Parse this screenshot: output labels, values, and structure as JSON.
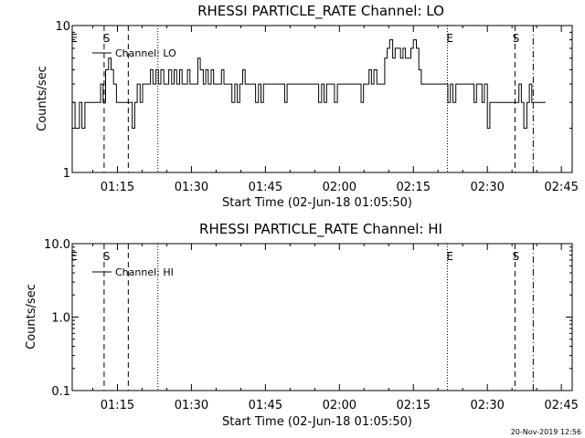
{
  "chart_data": [
    {
      "type": "line",
      "title": "RHESSI PARTICLE_RATE Channel: LO",
      "xlabel": "Start Time (02-Jun-18 01:05:50)",
      "ylabel": "Counts/sec",
      "y_scale": "log",
      "ylim": [
        1,
        10
      ],
      "y_ticks": [
        "1",
        "10"
      ],
      "x_ticks": [
        "01:15",
        "01:30",
        "01:45",
        "02:00",
        "02:15",
        "02:30",
        "02:45"
      ],
      "x_tick_minutes": [
        75,
        90,
        105,
        120,
        135,
        150,
        165
      ],
      "xlim_minutes": [
        65.83,
        167.2
      ],
      "legend": "Channel: LO",
      "legend_position": "top-left",
      "series": [
        {
          "x": [
            65.8,
            66.4,
            67.3,
            67.8,
            68.4,
            68.9,
            69.4,
            70.0,
            70.5,
            71.0,
            71.6,
            72.1,
            72.6,
            73.2,
            73.7,
            74.2,
            74.8,
            75.3,
            75.8,
            76.4,
            76.9,
            77.4,
            78.0,
            78.5,
            79.0,
            79.6,
            80.1,
            80.6,
            81.2,
            81.7,
            82.2,
            82.8,
            83.3,
            83.8,
            84.4,
            84.9,
            85.4,
            86.0,
            86.5,
            87.0,
            87.6,
            88.1,
            88.6,
            89.2,
            89.7,
            90.2,
            90.8,
            91.3,
            91.8,
            92.4,
            92.9,
            93.4,
            94.0,
            94.5,
            95.0,
            95.6,
            96.1,
            96.6,
            97.2,
            97.7,
            98.2,
            98.8,
            99.3,
            99.8,
            100.4,
            100.9,
            101.4,
            102.0,
            102.5,
            103.0,
            103.6,
            104.1,
            104.6,
            105.2,
            105.7,
            106.2,
            106.8,
            107.3,
            107.8,
            108.4,
            108.9,
            109.4,
            110.0,
            110.5,
            111.0,
            111.6,
            112.1,
            112.6,
            113.2,
            113.7,
            114.2,
            114.8,
            115.3,
            115.8,
            116.4,
            116.9,
            117.4,
            118.0,
            118.5,
            119.0,
            119.6,
            120.1,
            120.6,
            121.2,
            121.7,
            122.2,
            122.8,
            123.3,
            123.8,
            124.4,
            124.9,
            125.4,
            126.0,
            126.5,
            127.0,
            127.6,
            128.1,
            128.6,
            129.2,
            129.7,
            130.2,
            130.8,
            131.3,
            131.8,
            132.4,
            132.9,
            133.4,
            134.0,
            134.5,
            135.0,
            135.6,
            136.1,
            136.6,
            137.2,
            137.7,
            138.2,
            138.8,
            139.3,
            139.8,
            140.4,
            140.9,
            141.4,
            142.0,
            142.5,
            143.0,
            143.6,
            144.1,
            144.6,
            145.2,
            145.7,
            146.2,
            146.8,
            147.3,
            147.8,
            148.4,
            148.9,
            149.4,
            150.0,
            150.5,
            151.0,
            151.6,
            152.1,
            152.6,
            153.2,
            153.7,
            154.2,
            154.8,
            155.3,
            155.8,
            156.4,
            156.9,
            157.4,
            158.0,
            158.5,
            159.0,
            159.6,
            160.1,
            160.6,
            161.2
          ],
          "y": [
            3,
            2,
            3,
            2,
            3,
            3,
            3,
            3,
            3,
            3,
            4,
            3,
            5,
            6,
            5,
            4,
            3,
            3,
            3,
            3,
            3,
            3,
            2,
            3,
            4,
            3,
            4,
            4,
            4,
            5,
            4,
            5,
            4,
            5,
            4,
            4,
            5,
            4,
            5,
            4,
            5,
            4,
            4,
            5,
            4,
            4,
            4,
            6,
            5,
            4,
            5,
            4,
            5,
            4,
            4,
            4,
            5,
            4,
            4,
            4,
            3,
            4,
            3,
            4,
            5,
            4,
            4,
            4,
            4,
            3,
            4,
            3,
            4,
            4,
            4,
            4,
            4,
            4,
            4,
            4,
            3,
            4,
            4,
            4,
            4,
            4,
            4,
            4,
            4,
            4,
            4,
            4,
            4,
            3,
            4,
            3,
            4,
            4,
            4,
            3,
            4,
            4,
            4,
            4,
            4,
            4,
            4,
            4,
            4,
            3,
            4,
            4,
            5,
            4,
            5,
            4,
            4,
            4,
            6,
            7,
            8,
            6,
            7,
            7,
            6,
            7,
            6,
            6,
            7,
            8,
            7,
            5,
            4,
            4,
            4,
            4,
            4,
            4,
            4,
            4,
            4,
            4,
            3,
            4,
            3,
            4,
            4,
            4,
            4,
            4,
            4,
            4,
            3,
            4,
            4,
            3,
            4,
            2,
            3,
            3,
            3,
            3,
            3,
            3,
            3,
            3,
            3,
            3,
            3,
            4,
            3,
            2,
            3,
            4,
            3,
            3,
            3,
            3,
            3
          ]
        }
      ],
      "annotations": [
        {
          "label": "E",
          "minute": 66.2
        },
        {
          "label": "S",
          "minute": 72.8
        },
        {
          "label": "E",
          "minute": 142.4
        },
        {
          "label": "S",
          "minute": 155.8
        }
      ],
      "markers": [
        {
          "minute": 72.3,
          "style": "dashed"
        },
        {
          "minute": 77.2,
          "style": "dashed"
        },
        {
          "minute": 83.2,
          "style": "dotted"
        },
        {
          "minute": 141.9,
          "style": "dotted"
        },
        {
          "minute": 155.6,
          "style": "dashed"
        },
        {
          "minute": 159.3,
          "style": "dashdot"
        }
      ]
    },
    {
      "type": "line",
      "title": "RHESSI PARTICLE_RATE Channel: HI",
      "xlabel": "Start Time (02-Jun-18 01:05:50)",
      "ylabel": "Counts/sec",
      "y_scale": "log",
      "ylim": [
        0.1,
        10
      ],
      "y_ticks": [
        "0.1",
        "1.0",
        "10.0"
      ],
      "x_ticks": [
        "01:15",
        "01:30",
        "01:45",
        "02:00",
        "02:15",
        "02:30",
        "02:45"
      ],
      "x_tick_minutes": [
        75,
        90,
        105,
        120,
        135,
        150,
        165
      ],
      "xlim_minutes": [
        65.83,
        167.2
      ],
      "legend": "Channel: HI",
      "legend_position": "top-left",
      "series": [],
      "annotations": [
        {
          "label": "E",
          "minute": 66.2
        },
        {
          "label": "S",
          "minute": 72.8
        },
        {
          "label": "E",
          "minute": 142.4
        },
        {
          "label": "S",
          "minute": 155.8
        }
      ],
      "markers": [
        {
          "minute": 72.3,
          "style": "dashed"
        },
        {
          "minute": 77.2,
          "style": "dashed"
        },
        {
          "minute": 83.2,
          "style": "dotted"
        },
        {
          "minute": 141.9,
          "style": "dotted"
        },
        {
          "minute": 155.6,
          "style": "dashed"
        },
        {
          "minute": 159.3,
          "style": "dashdot"
        }
      ]
    }
  ],
  "footer": {
    "timestamp": "20-Nov-2019 12:56"
  }
}
